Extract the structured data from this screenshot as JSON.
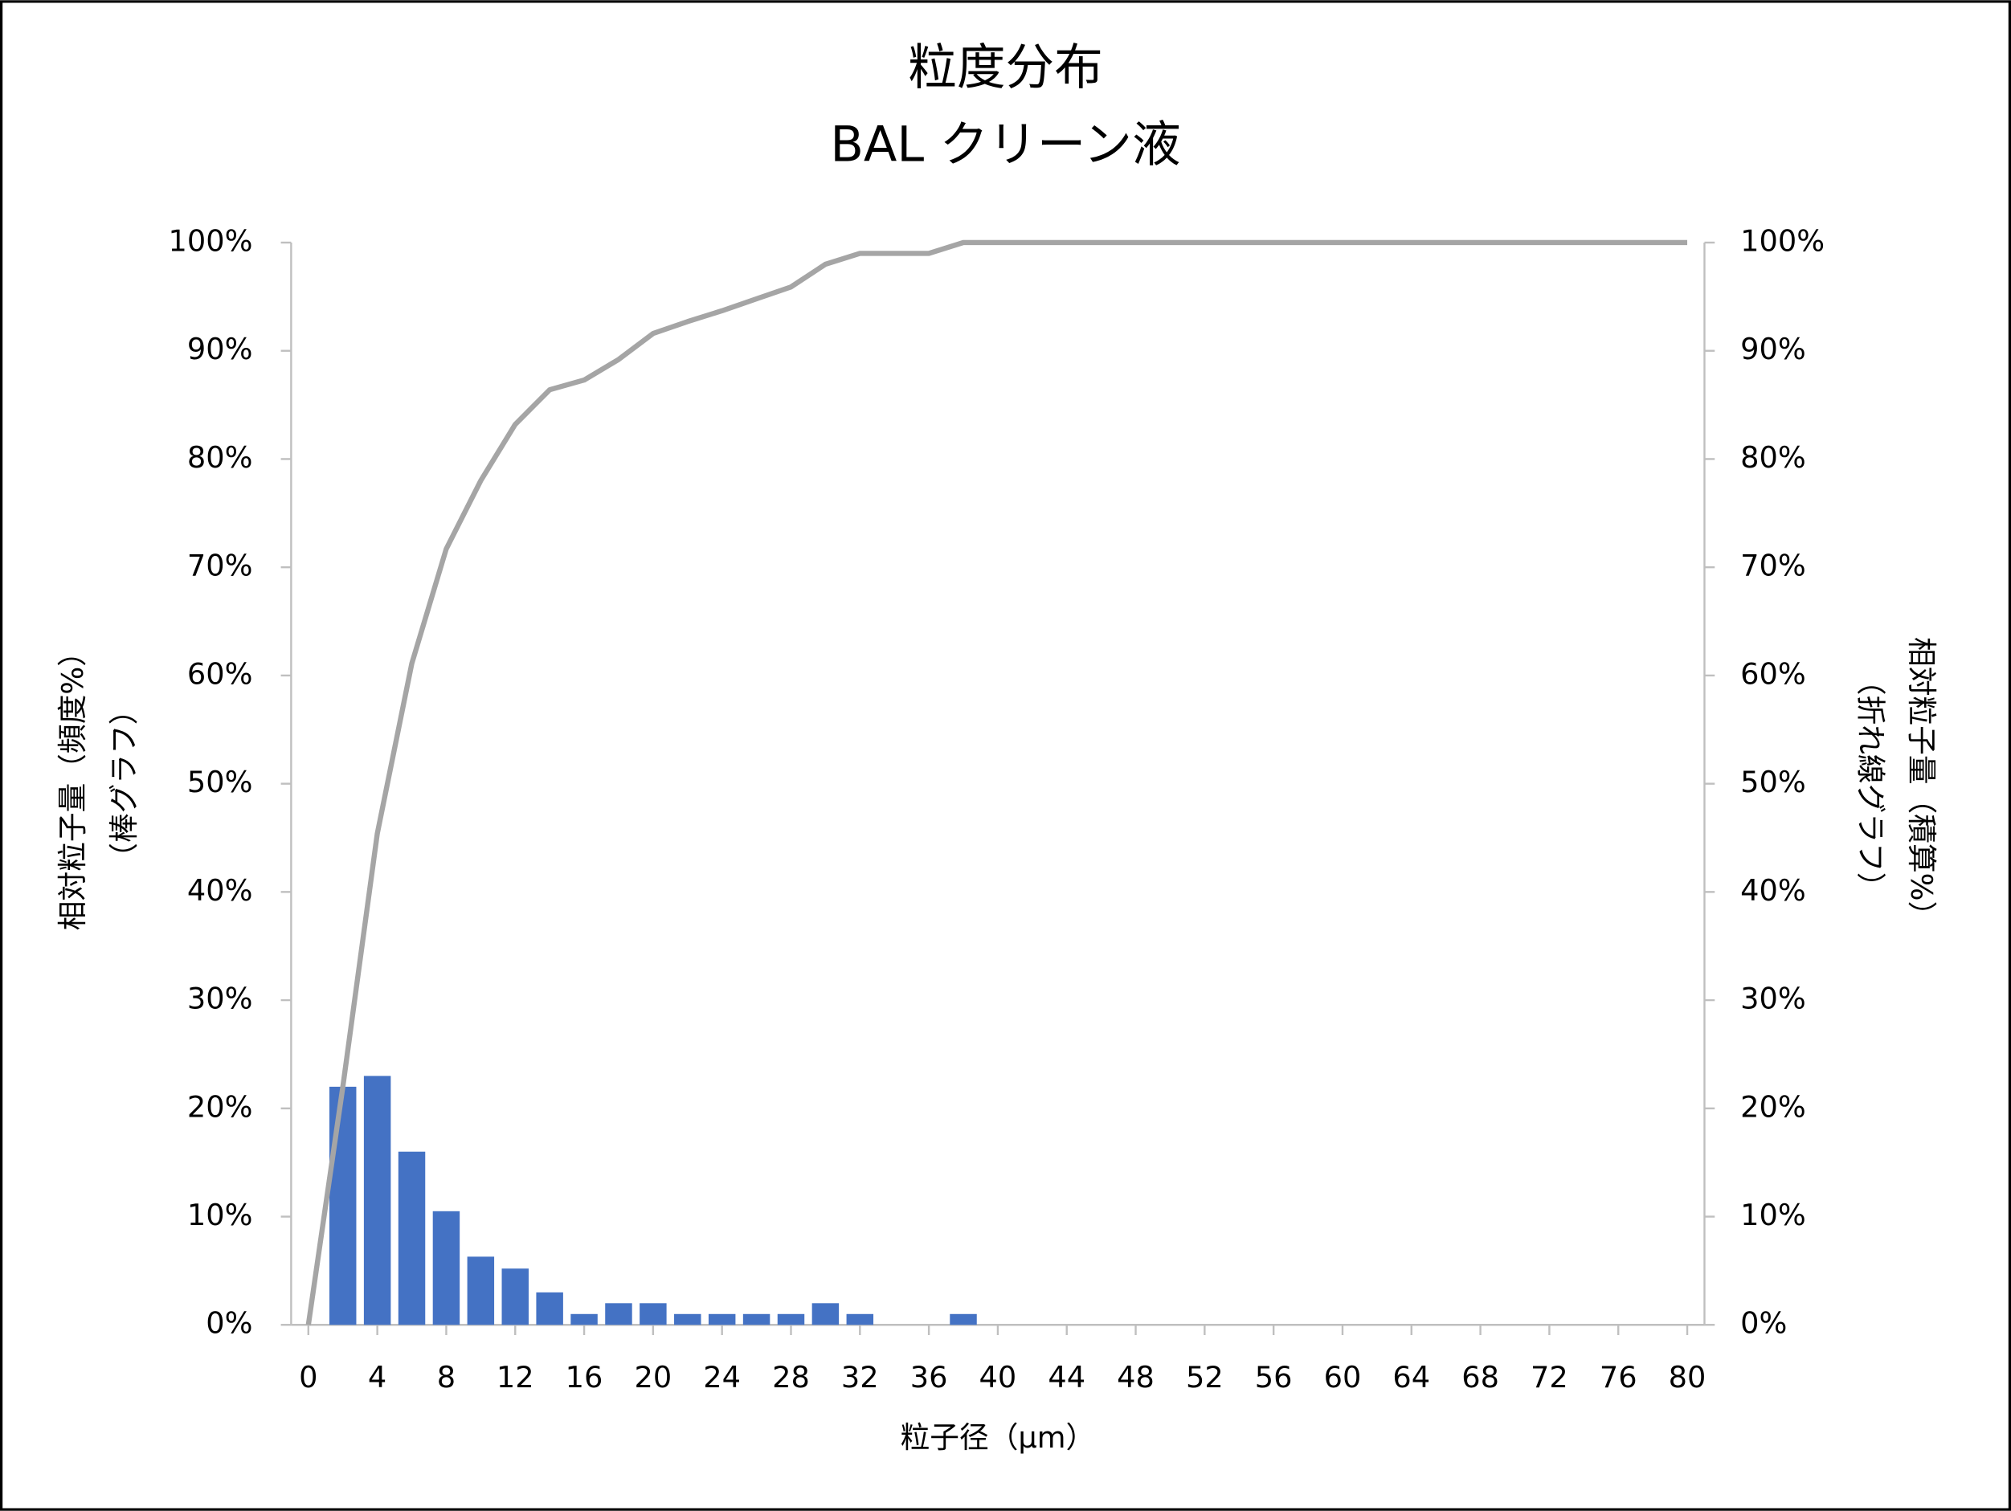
{
  "chart_data": {
    "type": "bar",
    "title": [
      "粒度分布",
      "BAL クリーン液"
    ],
    "x_label": "粒子径（μm）",
    "y_label": [
      "相対粒子量（頻度%）",
      "（棒グラフ）"
    ],
    "y2_label": [
      "相対粒子量（積算%）",
      "（折れ線グラフ）"
    ],
    "x": [
      0,
      2,
      4,
      6,
      8,
      10,
      12,
      14,
      16,
      18,
      20,
      22,
      24,
      26,
      28,
      30,
      32,
      34,
      36,
      38,
      40,
      42,
      44,
      46,
      48,
      50,
      52,
      54,
      56,
      58,
      60,
      62,
      64,
      66,
      68,
      70,
      72,
      74,
      76,
      78,
      80
    ],
    "series": [
      {
        "name": "頻度",
        "type": "bar",
        "color": "#4472c4",
        "axis": "y",
        "values": [
          0,
          22,
          23,
          16,
          10.5,
          6.3,
          5.2,
          3,
          1,
          2,
          2,
          1,
          1,
          1,
          1,
          2,
          1,
          0,
          0,
          1,
          0,
          0,
          0,
          0,
          0,
          0,
          0,
          0,
          0,
          0,
          0,
          0,
          0,
          0,
          0,
          0,
          0,
          0,
          0,
          0,
          0
        ]
      },
      {
        "name": "積算",
        "type": "line",
        "color": "#a5a5a5",
        "axis": "y2",
        "values": [
          0,
          22,
          45.4,
          61.1,
          71.7,
          78,
          83.2,
          86.4,
          87.3,
          89.2,
          91.6,
          92.7,
          93.7,
          94.8,
          95.9,
          98,
          99,
          99,
          99,
          100,
          100,
          100,
          100,
          100,
          100,
          100,
          100,
          100,
          100,
          100,
          100,
          100,
          100,
          100,
          100,
          100,
          100,
          100,
          100,
          100,
          100
        ]
      }
    ],
    "xlim": [
      -1,
      81
    ],
    "xticks": [
      0,
      4,
      8,
      12,
      16,
      20,
      24,
      28,
      32,
      36,
      40,
      44,
      48,
      52,
      56,
      60,
      64,
      68,
      72,
      76,
      80
    ],
    "ylim": [
      0,
      100
    ],
    "yticks": [
      {
        "value": 0,
        "label": "0%"
      },
      {
        "value": 10,
        "label": "10%"
      },
      {
        "value": 20,
        "label": "20%"
      },
      {
        "value": 30,
        "label": "30%"
      },
      {
        "value": 40,
        "label": "40%"
      },
      {
        "value": 50,
        "label": "50%"
      },
      {
        "value": 60,
        "label": "60%"
      },
      {
        "value": 70,
        "label": "70%"
      },
      {
        "value": 80,
        "label": "80%"
      },
      {
        "value": 90,
        "label": "90%"
      },
      {
        "value": 100,
        "label": "100%"
      }
    ],
    "y2lim": [
      0,
      100
    ],
    "y2ticks": [
      {
        "value": 0,
        "label": "0%"
      },
      {
        "value": 10,
        "label": "10%"
      },
      {
        "value": 20,
        "label": "20%"
      },
      {
        "value": 30,
        "label": "30%"
      },
      {
        "value": 40,
        "label": "40%"
      },
      {
        "value": 50,
        "label": "50%"
      },
      {
        "value": 60,
        "label": "60%"
      },
      {
        "value": 70,
        "label": "70%"
      },
      {
        "value": 80,
        "label": "80%"
      },
      {
        "value": 90,
        "label": "90%"
      },
      {
        "value": 100,
        "label": "100%"
      }
    ]
  }
}
